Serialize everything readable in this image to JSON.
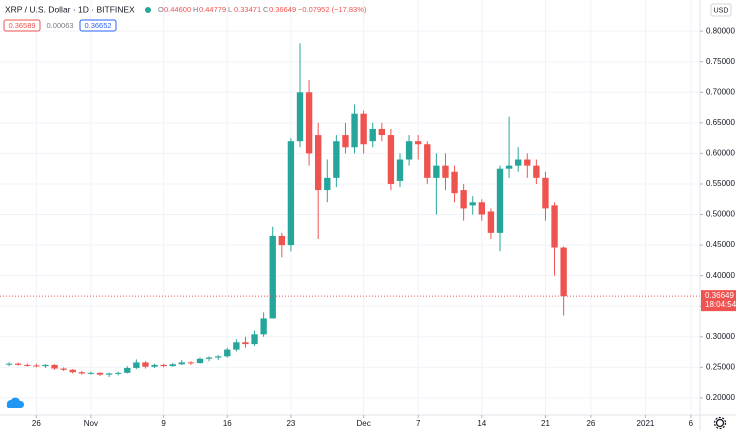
{
  "chart_data": {
    "type": "candlestick",
    "title": "XRP / U.S. Dollar · 1D · BITFINEX",
    "ohlc_header": [
      {
        "label": "O",
        "value": "0.44600"
      },
      {
        "label": "H",
        "value": "0.44779"
      },
      {
        "label": "L",
        "value": "0.33471"
      },
      {
        "label": "C",
        "value": "0.36649"
      }
    ],
    "change": "−0.07952 (−17.83%)",
    "quote_badges": [
      "0.36589",
      "0.00063",
      "0.36652"
    ],
    "currency": "USD",
    "last_price_label": "0.36649",
    "countdown": "18:04:54",
    "up_color": "#26a69a",
    "down_color": "#ef5350",
    "grid": true,
    "x": [
      "2020-10-23",
      "2020-10-24",
      "2020-10-25",
      "2020-10-26",
      "2020-10-27",
      "2020-10-28",
      "2020-10-29",
      "2020-10-30",
      "2020-10-31",
      "2020-11-01",
      "2020-11-02",
      "2020-11-03",
      "2020-11-04",
      "2020-11-05",
      "2020-11-06",
      "2020-11-07",
      "2020-11-08",
      "2020-11-09",
      "2020-11-10",
      "2020-11-11",
      "2020-11-12",
      "2020-11-13",
      "2020-11-14",
      "2020-11-15",
      "2020-11-16",
      "2020-11-17",
      "2020-11-18",
      "2020-11-19",
      "2020-11-20",
      "2020-11-21",
      "2020-11-22",
      "2020-11-23",
      "2020-11-24",
      "2020-11-25",
      "2020-11-26",
      "2020-11-27",
      "2020-11-28",
      "2020-11-29",
      "2020-11-30",
      "2020-12-01",
      "2020-12-02",
      "2020-12-03",
      "2020-12-04",
      "2020-12-05",
      "2020-12-06",
      "2020-12-07",
      "2020-12-08",
      "2020-12-09",
      "2020-12-10",
      "2020-12-11",
      "2020-12-12",
      "2020-12-13",
      "2020-12-14",
      "2020-12-15",
      "2020-12-16",
      "2020-12-17",
      "2020-12-18",
      "2020-12-19",
      "2020-12-20",
      "2020-12-21",
      "2020-12-22",
      "2020-12-23"
    ],
    "open": [
      0.255,
      0.256,
      0.254,
      0.253,
      0.252,
      0.254,
      0.248,
      0.246,
      0.242,
      0.24,
      0.241,
      0.238,
      0.24,
      0.241,
      0.249,
      0.258,
      0.251,
      0.254,
      0.252,
      0.255,
      0.258,
      0.257,
      0.264,
      0.266,
      0.268,
      0.279,
      0.291,
      0.288,
      0.304,
      0.33,
      0.465,
      0.45,
      0.62,
      0.7,
      0.63,
      0.54,
      0.56,
      0.63,
      0.61,
      0.665,
      0.62,
      0.64,
      0.63,
      0.555,
      0.59,
      0.62,
      0.615,
      0.56,
      0.58,
      0.57,
      0.54,
      0.515,
      0.52,
      0.505,
      0.47,
      0.575,
      0.58,
      0.59,
      0.58,
      0.56,
      0.515,
      0.446
    ],
    "high": [
      0.258,
      0.258,
      0.256,
      0.256,
      0.255,
      0.255,
      0.25,
      0.247,
      0.244,
      0.243,
      0.242,
      0.241,
      0.243,
      0.252,
      0.263,
      0.26,
      0.256,
      0.256,
      0.257,
      0.262,
      0.26,
      0.266,
      0.268,
      0.27,
      0.282,
      0.296,
      0.3,
      0.31,
      0.34,
      0.48,
      0.47,
      0.625,
      0.78,
      0.72,
      0.65,
      0.59,
      0.63,
      0.65,
      0.68,
      0.67,
      0.65,
      0.65,
      0.64,
      0.6,
      0.63,
      0.63,
      0.62,
      0.6,
      0.6,
      0.58,
      0.55,
      0.53,
      0.525,
      0.51,
      0.58,
      0.66,
      0.61,
      0.6,
      0.59,
      0.57,
      0.52,
      0.44779
    ],
    "low": [
      0.252,
      0.253,
      0.251,
      0.25,
      0.249,
      0.246,
      0.244,
      0.24,
      0.238,
      0.238,
      0.236,
      0.234,
      0.237,
      0.24,
      0.247,
      0.248,
      0.249,
      0.25,
      0.251,
      0.254,
      0.254,
      0.256,
      0.26,
      0.262,
      0.266,
      0.276,
      0.282,
      0.285,
      0.3,
      0.33,
      0.43,
      0.44,
      0.61,
      0.58,
      0.46,
      0.52,
      0.545,
      0.6,
      0.6,
      0.6,
      0.61,
      0.62,
      0.54,
      0.545,
      0.58,
      0.59,
      0.55,
      0.5,
      0.54,
      0.52,
      0.49,
      0.5,
      0.49,
      0.46,
      0.44,
      0.56,
      0.57,
      0.56,
      0.55,
      0.49,
      0.4,
      0.33471
    ],
    "close": [
      0.256,
      0.254,
      0.253,
      0.252,
      0.254,
      0.248,
      0.246,
      0.242,
      0.24,
      0.241,
      0.238,
      0.24,
      0.241,
      0.249,
      0.258,
      0.251,
      0.254,
      0.252,
      0.255,
      0.258,
      0.257,
      0.264,
      0.266,
      0.268,
      0.279,
      0.291,
      0.288,
      0.304,
      0.33,
      0.465,
      0.45,
      0.62,
      0.7,
      0.6,
      0.54,
      0.56,
      0.62,
      0.61,
      0.665,
      0.615,
      0.64,
      0.63,
      0.55,
      0.59,
      0.62,
      0.615,
      0.56,
      0.58,
      0.56,
      0.535,
      0.51,
      0.52,
      0.5,
      0.47,
      0.575,
      0.58,
      0.59,
      0.58,
      0.56,
      0.51,
      0.446,
      0.36649
    ],
    "last_price": 0.36649,
    "xlim": [
      "2020-10-22",
      "2021-01-07"
    ],
    "xticks": [
      {
        "value": "2020-10-26",
        "label": "26"
      },
      {
        "value": "2020-11-01",
        "label": "Nov"
      },
      {
        "value": "2020-11-09",
        "label": "9"
      },
      {
        "value": "2020-11-16",
        "label": "16"
      },
      {
        "value": "2020-11-23",
        "label": "23"
      },
      {
        "value": "2020-12-01",
        "label": "Dec"
      },
      {
        "value": "2020-12-07",
        "label": "7"
      },
      {
        "value": "2020-12-14",
        "label": "14"
      },
      {
        "value": "2020-12-21",
        "label": "21"
      },
      {
        "value": "2020-12-26",
        "label": "26"
      },
      {
        "value": "2021-01-01",
        "label": "2021"
      },
      {
        "value": "2021-01-06",
        "label": "6"
      }
    ],
    "ylim": [
      0.172,
      0.851
    ],
    "yticks": [
      {
        "value": 0.2,
        "label": "0.20000"
      },
      {
        "value": 0.25,
        "label": "0.25000"
      },
      {
        "value": 0.3,
        "label": "0.30000"
      },
      {
        "value": 0.35,
        "label": "0.35000"
      },
      {
        "value": 0.4,
        "label": "0.40000"
      },
      {
        "value": 0.45,
        "label": "0.45000"
      },
      {
        "value": 0.5,
        "label": "0.50000"
      },
      {
        "value": 0.55,
        "label": "0.55000"
      },
      {
        "value": 0.6,
        "label": "0.60000"
      },
      {
        "value": 0.65,
        "label": "0.65000"
      },
      {
        "value": 0.7,
        "label": "0.70000"
      },
      {
        "value": 0.75,
        "label": "0.75000"
      },
      {
        "value": 0.8,
        "label": "0.80000"
      }
    ]
  }
}
